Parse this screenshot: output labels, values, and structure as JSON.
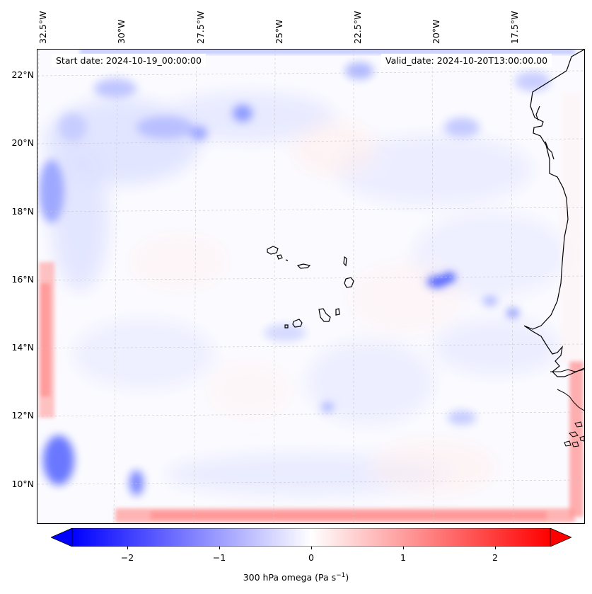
{
  "map": {
    "start_date": "Start date: 2024-10-19_00:00:00",
    "valid_date": "Valid_date: 2024-10-20T13:00:00.00",
    "lon_labels": [
      "32.5°W",
      "30°W",
      "27.5°W",
      "25°W",
      "22.5°W",
      "20°W",
      "17.5°W"
    ],
    "lat_labels": [
      "22°N",
      "20°N",
      "18°N",
      "16°N",
      "14°N",
      "12°N",
      "10°N"
    ],
    "field": "300 hPa omega",
    "regions": [
      "Cape Verde Islands",
      "West African coast (Senegal, Gambia, Guinea-Bissau)"
    ]
  },
  "colorbar": {
    "ticks": [
      "−2",
      "−1",
      "0",
      "1",
      "2"
    ],
    "tick_values": [
      -2,
      -1,
      0,
      1,
      2
    ],
    "range": [
      -2.6,
      2.6
    ],
    "label_main": "300 hPa omega (Pa s",
    "label_sup": "−1",
    "label_end": ")",
    "colormap": "bwr",
    "color_low": "#0000ff",
    "color_mid": "#ffffff",
    "color_high": "#ff0000"
  }
}
